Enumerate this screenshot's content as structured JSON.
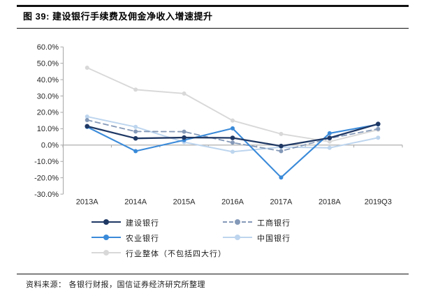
{
  "figure": {
    "title": "图 39: 建设银行手续费及佣金净收入增速提升",
    "source_label": "资料来源：",
    "source_text": "各银行财报，国信证券经济研究所整理"
  },
  "chart_data": {
    "type": "line",
    "title": "建设银行手续费及佣金净收入增速提升",
    "categories": [
      "2013A",
      "2014A",
      "2015A",
      "2016A",
      "2017A",
      "2018A",
      "2019Q3"
    ],
    "series": [
      {
        "name": "建设银行",
        "color": "#1F3864",
        "dash": null,
        "width": 2.3,
        "marker_r": 3.3,
        "values": [
          11.5,
          4.1,
          4.6,
          4.4,
          -0.6,
          4.4,
          12.9
        ]
      },
      {
        "name": "工商银行",
        "color": "#8499B8",
        "dash": "7,5",
        "width": 1.8,
        "marker_r": 3,
        "values": [
          15.3,
          8.3,
          8.2,
          1.5,
          -3.7,
          4.1,
          9.9
        ]
      },
      {
        "name": "农业银行",
        "color": "#3A8AD9",
        "dash": null,
        "width": 2.1,
        "marker_r": 3,
        "values": [
          11.1,
          -3.7,
          3.0,
          10.2,
          -19.8,
          7.2,
          12.6
        ]
      },
      {
        "name": "中国银行",
        "color": "#BDD5EE",
        "dash": null,
        "width": 2.0,
        "marker_r": 3,
        "values": [
          17.4,
          11.1,
          1.8,
          -4.1,
          -1.2,
          -1.7,
          4.5
        ]
      },
      {
        "name": "行业整体（不包括四大行）",
        "color": "#D8D8D8",
        "dash": null,
        "width": 1.9,
        "marker_r": 3,
        "values": [
          47.3,
          33.9,
          31.5,
          15.0,
          6.8,
          2.1,
          9.4
        ]
      }
    ],
    "draw_order": [
      4,
      3,
      1,
      2,
      0
    ],
    "yticks": [
      {
        "value": 60,
        "label": "60.0%"
      },
      {
        "value": 50,
        "label": "50.0%"
      },
      {
        "value": 40,
        "label": "40.0%"
      },
      {
        "value": 30,
        "label": "30.0%"
      },
      {
        "value": 20,
        "label": "20.0%"
      },
      {
        "value": 10,
        "label": "10.0%"
      },
      {
        "value": 0,
        "label": "0.0%"
      },
      {
        "value": -10,
        "label": "-10.0%"
      },
      {
        "value": -20,
        "label": "-20.0%"
      },
      {
        "value": -30,
        "label": "-30.0%"
      }
    ],
    "ylim": [
      -30,
      60
    ],
    "xlabel": "",
    "ylabel": "",
    "grid": "none",
    "legend_position": "bottom",
    "axis_color": "#A6A6A6",
    "text_color": "#262626"
  }
}
